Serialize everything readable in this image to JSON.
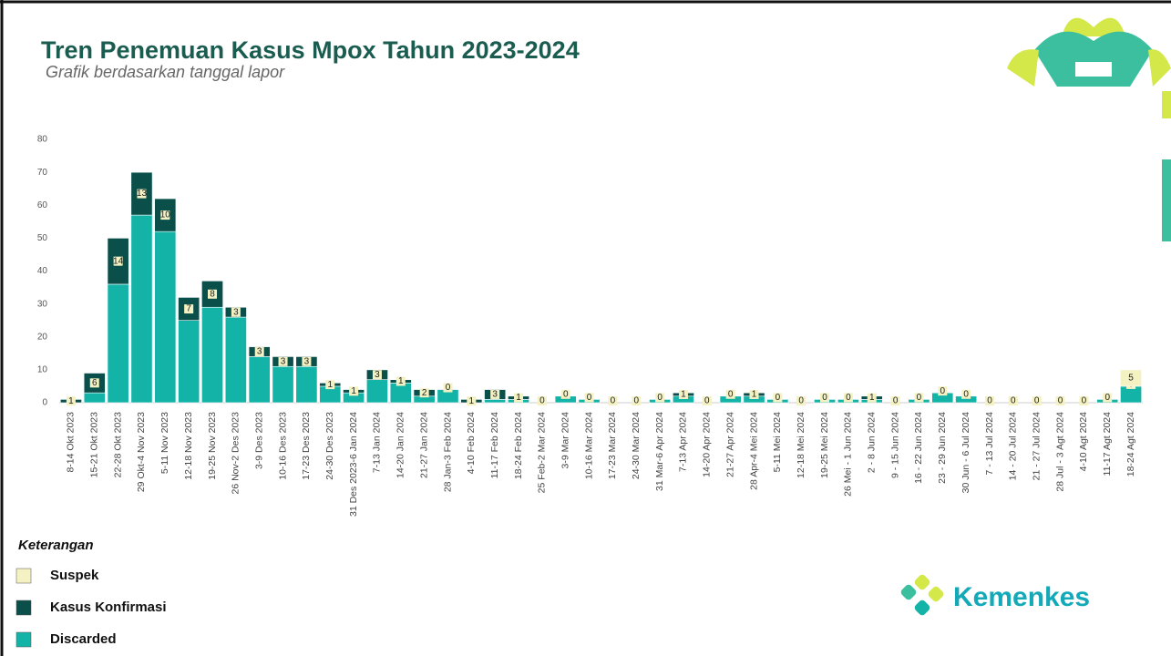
{
  "chart_data": {
    "type": "bar",
    "stacked": true,
    "title": "Tren Penemuan Kasus Mpox Tahun 2023-2024",
    "subtitle": "Grafik berdasarkan tanggal lapor",
    "legend_title": "Keterangan",
    "brand": "Kemenkes",
    "categories": [
      "8-14 Okt 2023",
      "15-21 Okt 2023",
      "22-28 Okt 2023",
      "29 Okt-4 Nov 2023",
      "5-11 Nov 2023",
      "12-18 Nov 2023",
      "19-25 Nov 2023",
      "26 Nov-2 Des 2023",
      "3-9 Des 2023",
      "10-16 Des 2023",
      "17-23 Des 2023",
      "24-30 Des 2023",
      "31 Des 2023-6 Jan 2024",
      "7-13 Jan 2024",
      "14-20 Jan 2024",
      "21-27 Jan 2024",
      "28 Jan-3 Feb 2024",
      "4-10 Feb 2024",
      "11-17 Feb 2024",
      "18-24 Feb 2024",
      "25 Feb-2 Mar 2024",
      "3-9 Mar 2024",
      "10-16 Mar 2024",
      "17-23 Mar 2024",
      "24-30 Mar 2024",
      "31 Mar-6 Apr 2024",
      "7-13 Apr 2024",
      "14-20 Apr 2024",
      "21-27 Apr 2024",
      "28 Apr-4 Mei 2024",
      "5-11 Mei 2024",
      "12-18 Mei 2024",
      "19-25 Mei 2024",
      "26 Mei - 1 Jun 2024",
      "2 - 8 Jun 2024",
      "9 - 15 Jun 2024",
      "16 - 22 Jun 2024",
      "23 - 29 Jun 2024",
      "30 Jun - 6 Jul 2024",
      "7 - 13 Jul 2024",
      "14 - 20 Jul 2024",
      "21 - 27 Jul 2024",
      "28 Jul - 3 Agt 2024",
      "4-10 Agt 2024",
      "11-17 Agt 2024",
      "18-24 Agt 2024"
    ],
    "series": [
      {
        "name": "Discarded",
        "color": "#14b3a8",
        "values": [
          0,
          3,
          36,
          57,
          52,
          25,
          29,
          26,
          14,
          11,
          11,
          5,
          3,
          7,
          6,
          2,
          4,
          0,
          1,
          1,
          0,
          2,
          1,
          0,
          0,
          1,
          2,
          0,
          2,
          2,
          1,
          0,
          1,
          1,
          1,
          0,
          1,
          3,
          2,
          0,
          0,
          0,
          0,
          0,
          1,
          5
        ]
      },
      {
        "name": "Kasus Konfirmasi",
        "color": "#0b4f4b",
        "values": [
          1,
          6,
          14,
          13,
          10,
          7,
          8,
          3,
          3,
          3,
          3,
          1,
          1,
          3,
          1,
          2,
          0,
          1,
          3,
          1,
          0,
          0,
          0,
          0,
          0,
          0,
          1,
          0,
          0,
          1,
          0,
          0,
          0,
          0,
          1,
          0,
          0,
          0,
          0,
          0,
          0,
          0,
          0,
          0,
          0,
          0
        ]
      },
      {
        "name": "Suspek",
        "color": "#f4f2c2",
        "values": [
          0,
          0,
          0,
          0,
          0,
          0,
          0,
          0,
          0,
          0,
          0,
          0,
          0,
          0,
          0,
          0,
          0,
          0,
          0,
          0,
          0,
          0,
          0,
          0,
          0,
          0,
          0,
          0,
          0,
          0,
          0,
          0,
          0,
          0,
          0,
          0,
          0,
          0,
          0,
          0,
          0,
          0,
          0,
          0,
          0,
          5
        ]
      }
    ],
    "ylim": [
      0,
      80
    ],
    "yticks": [
      0,
      10,
      20,
      30,
      40,
      50,
      60,
      70,
      80
    ]
  }
}
